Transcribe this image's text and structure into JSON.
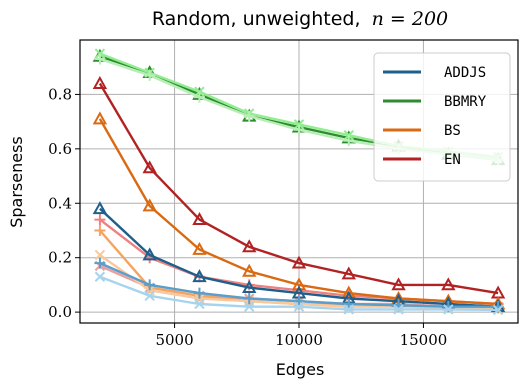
{
  "chart_data": {
    "type": "line",
    "title": "Random, unweighted,",
    "title_math": "n = 200",
    "xlabel": "Edges",
    "ylabel": "Sparseness",
    "xlim": [
      1200,
      18800
    ],
    "ylim": [
      -0.04,
      1.0
    ],
    "x_ticks": [
      5000,
      10000,
      15000
    ],
    "x_tick_labels": [
      "5000",
      "10000",
      "15000"
    ],
    "y_ticks": [
      0.0,
      0.2,
      0.4,
      0.6,
      0.8
    ],
    "y_tick_labels": [
      "0.0",
      "0.2",
      "0.4",
      "0.6",
      "0.8"
    ],
    "grid": true,
    "legend_placement": "top-right",
    "legend": [
      {
        "label": "ADDJS",
        "color": "#1f5f8b"
      },
      {
        "label": "BBMRY",
        "color": "#2e8b2e"
      },
      {
        "label": "BS",
        "color": "#d96a12"
      },
      {
        "label": "EN",
        "color": "#b22222"
      }
    ],
    "x": [
      2000,
      4000,
      6000,
      8000,
      10000,
      12000,
      14000,
      16000,
      18000
    ],
    "series": [
      {
        "name": "BBMRY",
        "color": "#2e8b2e",
        "marker": "triangle",
        "values": [
          0.94,
          0.88,
          0.8,
          0.72,
          0.68,
          0.64,
          0.61,
          0.58,
          0.56
        ]
      },
      {
        "color": "#90ee90",
        "marker": "x",
        "values": [
          0.95,
          0.88,
          0.81,
          0.73,
          0.69,
          0.65,
          0.61,
          0.59,
          0.57
        ]
      },
      {
        "color": "#b6eeb6",
        "marker": "plus",
        "values": [
          0.93,
          0.87,
          0.79,
          0.72,
          0.67,
          0.63,
          0.6,
          0.58,
          0.56
        ]
      },
      {
        "name": "EN",
        "color": "#b22222",
        "marker": "triangle",
        "values": [
          0.84,
          0.53,
          0.34,
          0.24,
          0.18,
          0.14,
          0.1,
          0.1,
          0.07
        ]
      },
      {
        "color": "#f08080",
        "marker": "plus",
        "values": [
          0.34,
          0.2,
          0.13,
          0.1,
          0.08,
          0.06,
          0.05,
          0.04,
          0.03
        ]
      },
      {
        "color": "#e8a0a0",
        "marker": "x",
        "values": [
          0.17,
          0.09,
          0.06,
          0.05,
          0.04,
          0.03,
          0.03,
          0.02,
          0.02
        ]
      },
      {
        "name": "BS",
        "color": "#d96a12",
        "marker": "triangle",
        "values": [
          0.71,
          0.39,
          0.23,
          0.15,
          0.1,
          0.07,
          0.05,
          0.04,
          0.03
        ]
      },
      {
        "color": "#f4a460",
        "marker": "plus",
        "values": [
          0.3,
          0.09,
          0.06,
          0.04,
          0.03,
          0.025,
          0.02,
          0.02,
          0.015
        ]
      },
      {
        "color": "#f9c89b",
        "marker": "x",
        "values": [
          0.21,
          0.08,
          0.05,
          0.04,
          0.03,
          0.02,
          0.02,
          0.015,
          0.01
        ]
      },
      {
        "name": "ADDJS",
        "color": "#1f5f8b",
        "marker": "triangle",
        "values": [
          0.38,
          0.21,
          0.13,
          0.09,
          0.07,
          0.05,
          0.04,
          0.03,
          0.02
        ]
      },
      {
        "color": "#5a9ecb",
        "marker": "plus",
        "values": [
          0.18,
          0.1,
          0.07,
          0.05,
          0.04,
          0.03,
          0.025,
          0.02,
          0.02
        ]
      },
      {
        "color": "#a6d4ee",
        "marker": "x",
        "values": [
          0.13,
          0.06,
          0.03,
          0.02,
          0.02,
          0.01,
          0.01,
          0.01,
          0.008
        ]
      }
    ]
  }
}
